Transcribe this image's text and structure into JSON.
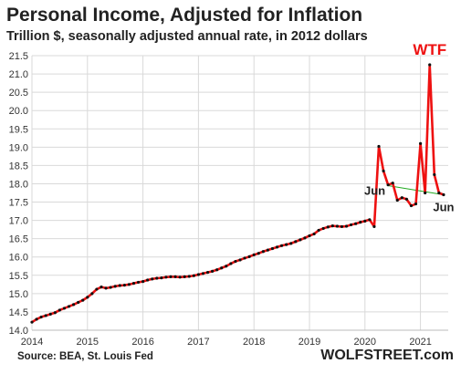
{
  "chart_data": {
    "type": "line",
    "title": "Personal Income, Adjusted for Inflation",
    "subtitle": "Trillion $, seasonally adjusted annual rate, in 2012 dollars",
    "source": "Source: BEA, St. Louis Fed",
    "brand": "WOLFSTREET.com",
    "ylim": [
      14.0,
      21.5
    ],
    "y_ticks": [
      "14.0",
      "14.5",
      "15.0",
      "15.5",
      "16.0",
      "16.5",
      "17.0",
      "17.5",
      "18.0",
      "18.5",
      "19.0",
      "19.5",
      "20.0",
      "20.5",
      "21.0",
      "21.5"
    ],
    "x_ticks": [
      "2014",
      "2015",
      "2016",
      "2017",
      "2018",
      "2019",
      "2020",
      "2021"
    ],
    "x_range": [
      "2014-01",
      "2021-07"
    ],
    "grid": true,
    "colors": {
      "line": "#ee1111",
      "markers": "#111111",
      "trend": "#22aa22",
      "wtf": "#ee1111",
      "grid": "#d9d9d9"
    },
    "annotations": [
      {
        "text": "WTF",
        "x": "2021-03",
        "y": 21.3
      },
      {
        "text": "Jun",
        "x": "2020-06",
        "y": 18.0
      },
      {
        "text": "Jun",
        "x": "2021-06",
        "y": 17.7
      }
    ],
    "trend_line": [
      {
        "x": "2020-06",
        "y": 17.95
      },
      {
        "x": "2021-06",
        "y": 17.7
      }
    ],
    "series": [
      {
        "x": [
          "2014-01",
          "2014-02",
          "2014-03",
          "2014-04",
          "2014-05",
          "2014-06",
          "2014-07",
          "2014-08",
          "2014-09",
          "2014-10",
          "2014-11",
          "2014-12",
          "2015-01",
          "2015-02",
          "2015-03",
          "2015-04",
          "2015-05",
          "2015-06",
          "2015-07",
          "2015-08",
          "2015-09",
          "2015-10",
          "2015-11",
          "2015-12",
          "2016-01",
          "2016-02",
          "2016-03",
          "2016-04",
          "2016-05",
          "2016-06",
          "2016-07",
          "2016-08",
          "2016-09",
          "2016-10",
          "2016-11",
          "2016-12",
          "2017-01",
          "2017-02",
          "2017-03",
          "2017-04",
          "2017-05",
          "2017-06",
          "2017-07",
          "2017-08",
          "2017-09",
          "2017-10",
          "2017-11",
          "2017-12",
          "2018-01",
          "2018-02",
          "2018-03",
          "2018-04",
          "2018-05",
          "2018-06",
          "2018-07",
          "2018-08",
          "2018-09",
          "2018-10",
          "2018-11",
          "2018-12",
          "2019-01",
          "2019-02",
          "2019-03",
          "2019-04",
          "2019-05",
          "2019-06",
          "2019-07",
          "2019-08",
          "2019-09",
          "2019-10",
          "2019-11",
          "2019-12",
          "2020-01",
          "2020-02",
          "2020-03",
          "2020-04",
          "2020-05",
          "2020-06",
          "2020-07",
          "2020-08",
          "2020-09",
          "2020-10",
          "2020-11",
          "2020-12",
          "2021-01",
          "2021-02",
          "2021-03",
          "2021-04",
          "2021-05",
          "2021-06"
        ],
        "values": [
          14.22,
          14.3,
          14.36,
          14.4,
          14.44,
          14.48,
          14.55,
          14.6,
          14.65,
          14.7,
          14.76,
          14.82,
          14.9,
          15.0,
          15.12,
          15.18,
          15.15,
          15.17,
          15.2,
          15.22,
          15.23,
          15.25,
          15.28,
          15.31,
          15.33,
          15.37,
          15.4,
          15.42,
          15.43,
          15.45,
          15.46,
          15.46,
          15.45,
          15.46,
          15.47,
          15.49,
          15.52,
          15.55,
          15.58,
          15.61,
          15.65,
          15.7,
          15.75,
          15.82,
          15.88,
          15.92,
          15.97,
          16.01,
          16.06,
          16.1,
          16.15,
          16.19,
          16.23,
          16.27,
          16.31,
          16.34,
          16.37,
          16.42,
          16.47,
          16.52,
          16.58,
          16.63,
          16.73,
          16.78,
          16.82,
          16.85,
          16.84,
          16.83,
          16.84,
          16.88,
          16.91,
          16.95,
          16.98,
          17.02,
          16.83,
          19.02,
          18.35,
          17.97,
          18.02,
          17.55,
          17.62,
          17.58,
          17.4,
          17.45,
          19.1,
          17.75,
          21.25,
          18.25,
          17.75,
          17.7
        ]
      }
    ]
  }
}
